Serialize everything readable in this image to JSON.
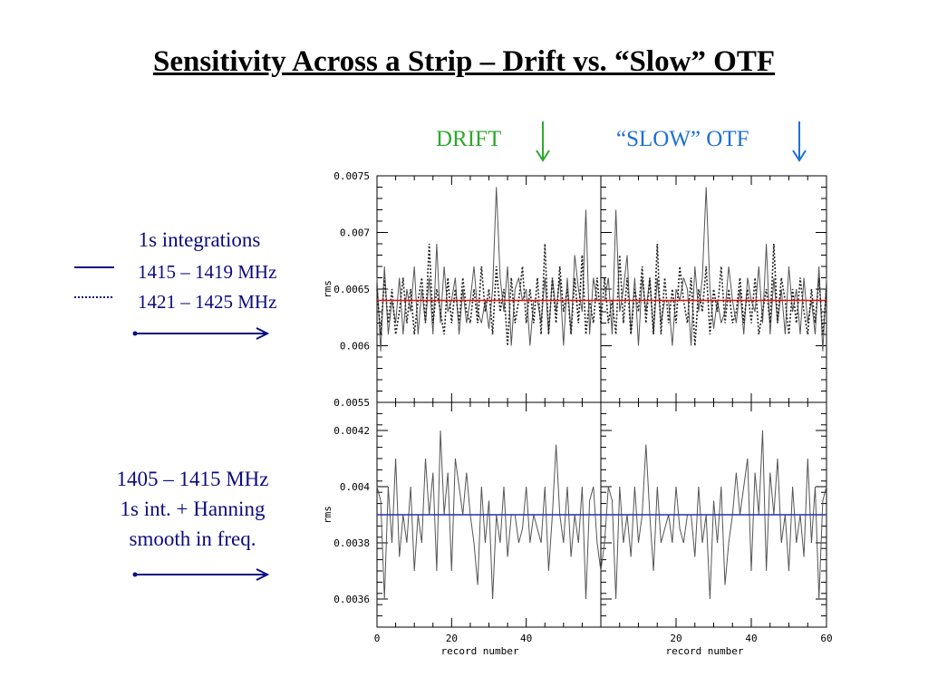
{
  "slide": {
    "title": "Sensitivity Across a Strip – Drift vs. “Slow” OTF",
    "drift_label": "DRIFT",
    "otf_label": "“SLOW” OTF"
  },
  "colors": {
    "drift_label": "#2ea82e",
    "otf_label": "#1e6fd9",
    "annotation": "#0b0b80",
    "top_ref_line": "#e01010",
    "bottom_ref_line": "#2030b0",
    "trace": "#555555"
  },
  "annotations": {
    "top": {
      "heading": "1s integrations",
      "solid_legend": "1415 – 1419 MHz",
      "dotted_legend": "1421 – 1425 MHz"
    },
    "bottom": {
      "line1": "1405 – 1415 MHz",
      "line2": "1s int. + Hanning",
      "line3": "smooth in freq."
    }
  },
  "chart_data": [
    {
      "type": "line",
      "panel": "top",
      "ylabel": "rms",
      "xlabel": "",
      "ylim": [
        0.0055,
        0.0075
      ],
      "yticks": [
        "0.0055",
        "0.006",
        "0.0065",
        "0.007",
        "0.0075"
      ],
      "reference_line": 0.0064,
      "xlim": [
        0,
        60
      ],
      "x": [
        0,
        1,
        2,
        3,
        4,
        5,
        6,
        7,
        8,
        9,
        10,
        11,
        12,
        13,
        14,
        15,
        16,
        17,
        18,
        19,
        20,
        21,
        22,
        23,
        24,
        25,
        26,
        27,
        28,
        29,
        30,
        31,
        32,
        33,
        34,
        35,
        36,
        37,
        38,
        39,
        40,
        41,
        42,
        43,
        44,
        45,
        46,
        47,
        48,
        49,
        50,
        51,
        52,
        53,
        54,
        55,
        56,
        57,
        58,
        59,
        60
      ],
      "series": [
        {
          "style": "solid",
          "values": [
            0.0066,
            0.00595,
            0.0067,
            0.0061,
            0.0064,
            0.0062,
            0.0066,
            0.0061,
            0.0065,
            0.0063,
            0.0067,
            0.0061,
            0.0065,
            0.0062,
            0.0066,
            0.0061,
            0.0069,
            0.0062,
            0.0067,
            0.0063,
            0.0064,
            0.0066,
            0.0061,
            0.0065,
            0.0062,
            0.0064,
            0.0067,
            0.0063,
            0.0062,
            0.0064,
            0.00615,
            0.0065,
            0.0074,
            0.0066,
            0.0063,
            0.0067,
            0.006,
            0.0065,
            0.0066,
            0.0064,
            0.0065,
            0.006,
            0.0064,
            0.0064,
            0.0062,
            0.0066,
            0.0061,
            0.0066,
            0.0063,
            0.0066,
            0.006,
            0.0066,
            0.0061,
            0.0068,
            0.0065,
            0.0063,
            0.0072,
            0.0061,
            0.0066,
            0.0064,
            0.0064
          ]
        },
        {
          "style": "dotted",
          "values": [
            0.0065,
            0.0061,
            0.0066,
            0.0062,
            0.0065,
            0.0061,
            0.0063,
            0.0066,
            0.0062,
            0.0065,
            0.0061,
            0.0064,
            0.0066,
            0.0062,
            0.0069,
            0.0062,
            0.0065,
            0.0063,
            0.0061,
            0.0066,
            0.0062,
            0.0065,
            0.0062,
            0.0066,
            0.0063,
            0.0062,
            0.0065,
            0.0062,
            0.0067,
            0.0063,
            0.0065,
            0.0061,
            0.0067,
            0.0063,
            0.0065,
            0.006,
            0.0066,
            0.0062,
            0.0064,
            0.0067,
            0.0062,
            0.0065,
            0.0062,
            0.0066,
            0.0061,
            0.0069,
            0.0061,
            0.0066,
            0.0062,
            0.0067,
            0.0063,
            0.0065,
            0.0061,
            0.0066,
            0.0062,
            0.0068,
            0.0061,
            0.0064,
            0.0062,
            0.0066,
            0.0062
          ]
        }
      ]
    },
    {
      "type": "line",
      "panel": "bottom",
      "ylabel": "rms",
      "xlabel": "record number",
      "ylim": [
        0.0035,
        0.0043
      ],
      "yticks": [
        "0.0036",
        "0.0038",
        "0.004",
        "0.0042"
      ],
      "reference_line": 0.0039,
      "xlim": [
        0,
        60
      ],
      "xticks": [
        "0",
        "20",
        "40",
        "60"
      ],
      "x": [
        0,
        1,
        2,
        3,
        4,
        5,
        6,
        7,
        8,
        9,
        10,
        11,
        12,
        13,
        14,
        15,
        16,
        17,
        18,
        19,
        20,
        21,
        22,
        23,
        24,
        25,
        26,
        27,
        28,
        29,
        30,
        31,
        32,
        33,
        34,
        35,
        36,
        37,
        38,
        39,
        40,
        41,
        42,
        43,
        44,
        45,
        46,
        47,
        48,
        49,
        50,
        51,
        52,
        53,
        54,
        55,
        56,
        57,
        58,
        59,
        60
      ],
      "series": [
        {
          "style": "solid",
          "values": [
            0.004,
            0.00395,
            0.0036,
            0.004,
            0.0038,
            0.0041,
            0.00375,
            0.0039,
            0.0038,
            0.004,
            0.0037,
            0.0039,
            0.0038,
            0.0041,
            0.0039,
            0.00405,
            0.0037,
            0.0042,
            0.0039,
            0.00405,
            0.0037,
            0.0041,
            0.004,
            0.0039,
            0.00405,
            0.0039,
            0.0038,
            0.00365,
            0.004,
            0.0038,
            0.00395,
            0.0036,
            0.0039,
            0.0038,
            0.004,
            0.00375,
            0.0039,
            0.0039,
            0.0038,
            0.00385,
            0.004,
            0.0038,
            0.0039,
            0.00385,
            0.0038,
            0.004,
            0.0037,
            0.0039,
            0.00415,
            0.0039,
            0.0038,
            0.004,
            0.00375,
            0.0039,
            0.0038,
            0.004,
            0.0036,
            0.00395,
            0.004,
            0.0038,
            0.0037
          ]
        }
      ]
    }
  ]
}
